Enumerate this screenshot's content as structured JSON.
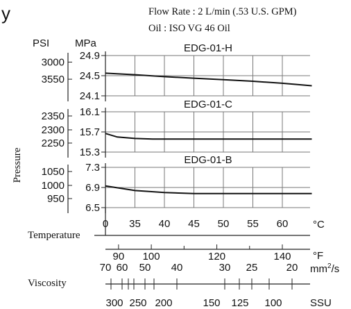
{
  "header": {
    "line1": "Flow Rate : 2 L/min (.53 U.S. GPM)",
    "line2": "Oil : ISO VG 46 Oil"
  },
  "partial_title": "y",
  "unit_labels": {
    "psi": "PSI",
    "mpa": "MPa"
  },
  "y_axis_label": "Pressure",
  "temperature": {
    "label": "Temperature",
    "unit": "°C",
    "ticks": [
      0,
      5,
      10,
      15,
      20,
      25,
      30,
      35,
      40,
      45,
      50,
      55,
      60,
      65
    ],
    "tick_labels": [
      0,
      35,
      40,
      45,
      50,
      55,
      60
    ],
    "range": [
      30,
      65
    ]
  },
  "fahrenheit": {
    "unit": "°F",
    "ticks": [
      90,
      100,
      120,
      140
    ],
    "minor_ticks": [
      110,
      130
    ]
  },
  "viscosity": {
    "label": "Viscosity",
    "mm2s": {
      "unit_prefix": "mm",
      "unit_sup": "2",
      "unit_suffix": "/s",
      "ticks": [
        "70",
        "60",
        "50",
        "40",
        "30",
        "25",
        "20"
      ]
    },
    "ssu": {
      "unit": "SSU",
      "ticks": [
        "300",
        "250",
        "200",
        "150",
        "125",
        "100"
      ]
    }
  },
  "chart_data": [
    {
      "type": "line",
      "title": "EDG-01-H",
      "xlabel": "Temperature (°C)",
      "ylabel": "Pressure (MPa)",
      "ylim": [
        24.1,
        24.9
      ],
      "y_ticks_mpa": [
        "24.9",
        "24.5",
        "24.1"
      ],
      "y_ticks_psi": [
        "3000",
        "3550"
      ],
      "x": [
        30,
        35,
        40,
        45,
        50,
        55,
        60,
        65
      ],
      "y": [
        24.55,
        24.52,
        24.48,
        24.45,
        24.42,
        24.39,
        24.35,
        24.3
      ]
    },
    {
      "type": "line",
      "title": "EDG-01-C",
      "xlabel": "Temperature (°C)",
      "ylabel": "Pressure (MPa)",
      "ylim": [
        15.3,
        16.1
      ],
      "y_ticks_mpa": [
        "16.1",
        "15.7",
        "15.3"
      ],
      "y_ticks_psi": [
        "2350",
        "2300",
        "2250"
      ],
      "x": [
        30,
        32,
        35,
        38,
        40,
        45,
        50,
        55,
        60,
        65
      ],
      "y": [
        15.67,
        15.6,
        15.57,
        15.56,
        15.56,
        15.56,
        15.56,
        15.56,
        15.56,
        15.56
      ]
    },
    {
      "type": "line",
      "title": "EDG-01-B",
      "xlabel": "Temperature (°C)",
      "ylabel": "Pressure (MPa)",
      "ylim": [
        6.5,
        7.3
      ],
      "y_ticks_mpa": [
        "7.3",
        "6.9",
        "6.5"
      ],
      "y_ticks_psi": [
        "1050",
        "1000",
        "950"
      ],
      "x": [
        30,
        35,
        40,
        45,
        50,
        55,
        60,
        65
      ],
      "y": [
        6.93,
        6.84,
        6.8,
        6.78,
        6.78,
        6.78,
        6.78,
        6.78
      ]
    }
  ]
}
